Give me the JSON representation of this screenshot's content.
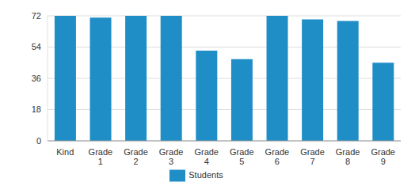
{
  "chart_data": {
    "type": "bar",
    "categories": [
      "Kind",
      "Grade 1",
      "Grade 2",
      "Grade 3",
      "Grade 4",
      "Grade 5",
      "Grade 6",
      "Grade 7",
      "Grade 8",
      "Grade 9"
    ],
    "series": [
      {
        "name": "Students",
        "color": "#1f8ec7",
        "values": [
          72,
          71,
          72,
          72,
          52,
          47,
          72,
          70,
          69,
          45
        ]
      }
    ],
    "ylim": [
      0,
      72
    ],
    "yticks": [
      0,
      18,
      36,
      54,
      72
    ],
    "grid": true,
    "legend": "bottom"
  }
}
